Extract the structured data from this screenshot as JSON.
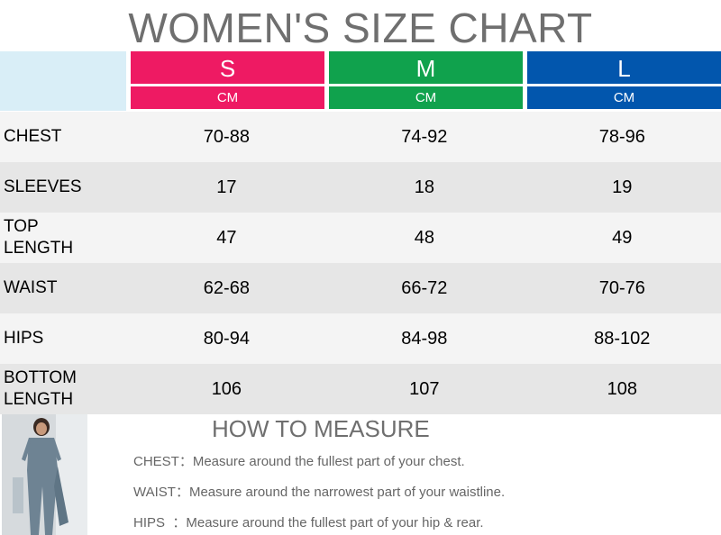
{
  "title": "WOMEN'S SIZE CHART",
  "sizes": [
    {
      "label": "S",
      "unit": "CM",
      "color": "#ee1a63"
    },
    {
      "label": "M",
      "unit": "CM",
      "color": "#10a24d"
    },
    {
      "label": "L",
      "unit": "CM",
      "color": "#0256ad"
    }
  ],
  "rows": [
    {
      "label": "CHEST",
      "values": [
        "70-88",
        "74-92",
        "78-96"
      ]
    },
    {
      "label": "SLEEVES",
      "values": [
        "17",
        "18",
        "19"
      ]
    },
    {
      "label": "TOP\nLENGTH",
      "values": [
        "47",
        "48",
        "49"
      ]
    },
    {
      "label": "WAIST",
      "values": [
        "62-68",
        "66-72",
        "70-76"
      ]
    },
    {
      "label": "HIPS",
      "values": [
        "80-94",
        "84-98",
        "88-102"
      ]
    },
    {
      "label": "BOTTOM\nLENGTH",
      "values": [
        "106",
        "107",
        "108"
      ]
    }
  ],
  "how_to_measure": {
    "title": "HOW TO MEASURE",
    "items": [
      {
        "key": "CHEST：",
        "text": "Measure around the fullest part of your chest."
      },
      {
        "key": "WAIST：",
        "text": "Measure around the narrowest part of your waistline."
      },
      {
        "key": "HIPS  ：",
        "text": "Measure around the fullest part of your hip & rear."
      }
    ]
  }
}
